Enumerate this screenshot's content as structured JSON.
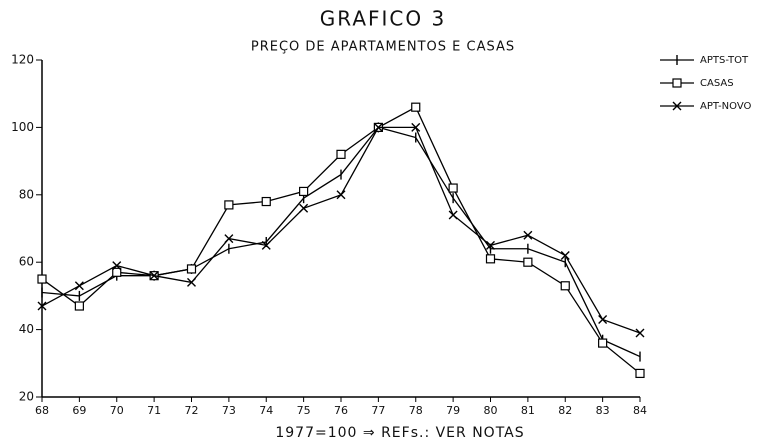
{
  "chart_data": {
    "type": "line",
    "title": "GRAFICO 3",
    "subtitle": "PREÇO DE APARTAMENTOS E CASAS",
    "x_label": "1977=100 ⇒ REFs.: VER NOTAS",
    "categories": [
      "68",
      "69",
      "70",
      "71",
      "72",
      "73",
      "74",
      "75",
      "76",
      "77",
      "78",
      "79",
      "80",
      "81",
      "82",
      "83",
      "84"
    ],
    "series": [
      {
        "name": "APTS-TOT",
        "color": "#000000",
        "marker": "plus",
        "values": [
          51,
          50,
          56,
          56,
          58,
          64,
          66,
          79,
          86,
          100,
          97,
          79,
          64,
          64,
          60,
          37,
          32
        ]
      },
      {
        "name": "CASAS",
        "color": "#000000",
        "marker": "square",
        "values": [
          55,
          47,
          57,
          56,
          58,
          77,
          78,
          81,
          92,
          100,
          106,
          82,
          61,
          60,
          53,
          36,
          27
        ]
      },
      {
        "name": "APT-NOVO",
        "color": "#000000",
        "marker": "x",
        "values": [
          47,
          53,
          59,
          56,
          54,
          67,
          65,
          76,
          80,
          100,
          100,
          74,
          65,
          68,
          62,
          43,
          39
        ]
      }
    ],
    "ylim": [
      20,
      120
    ],
    "yticks": [
      20,
      40,
      60,
      80,
      100,
      120
    ],
    "legend": "top-right",
    "grid": false
  }
}
